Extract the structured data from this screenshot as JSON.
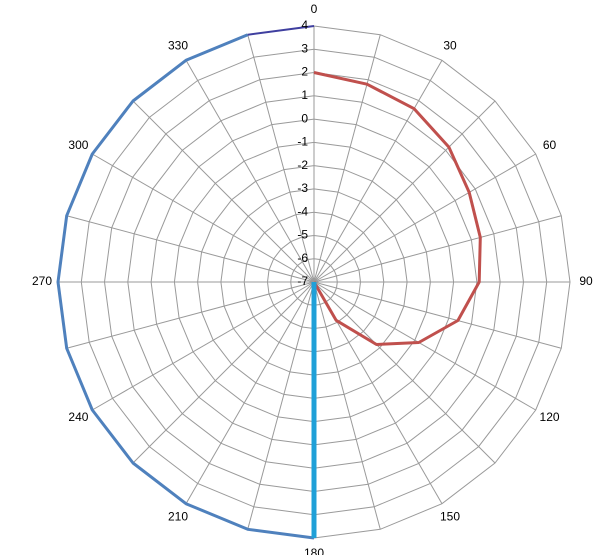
{
  "chart_data": {
    "type": "radar",
    "categories": [
      "0",
      null,
      "30",
      null,
      "60",
      null,
      "90",
      null,
      "120",
      null,
      "150",
      null,
      "180",
      null,
      "210",
      null,
      "240",
      null,
      "270",
      null,
      "300",
      null,
      "330",
      null
    ],
    "ylim": [
      -7,
      4
    ],
    "yticks": [
      -7,
      -6,
      -5,
      -4,
      -3,
      -2,
      -1,
      0,
      1,
      2,
      3,
      4
    ],
    "grid": true,
    "series": [
      {
        "color": "#c0504d",
        "width": 3,
        "values": [
          2,
          1.8,
          1.6,
          1.2,
          0.7,
          0.4,
          0.1,
          -0.6,
          -1.8,
          -3.2,
          -5.1,
          -7,
          null,
          null,
          null,
          null,
          null,
          null,
          null,
          null,
          null,
          null,
          null,
          null
        ]
      },
      {
        "color": "#4f81bd",
        "width": 3,
        "values": [
          null,
          null,
          null,
          null,
          null,
          null,
          null,
          null,
          null,
          null,
          null,
          null,
          4,
          4,
          4,
          4,
          4,
          4,
          4,
          4,
          4,
          4,
          4,
          4
        ]
      },
      {
        "color": "#3f3f9f",
        "width": 2,
        "values": [
          4,
          null,
          null,
          null,
          null,
          null,
          null,
          null,
          null,
          null,
          null,
          null,
          null,
          null,
          null,
          null,
          null,
          null,
          null,
          null,
          null,
          null,
          null,
          4
        ]
      },
      {
        "color": "#1fa0d8",
        "width": 5,
        "values": [
          null,
          null,
          null,
          null,
          null,
          null,
          null,
          null,
          null,
          null,
          null,
          -7,
          4,
          null,
          null,
          null,
          null,
          null,
          null,
          null,
          null,
          null,
          null,
          null
        ]
      }
    ]
  }
}
